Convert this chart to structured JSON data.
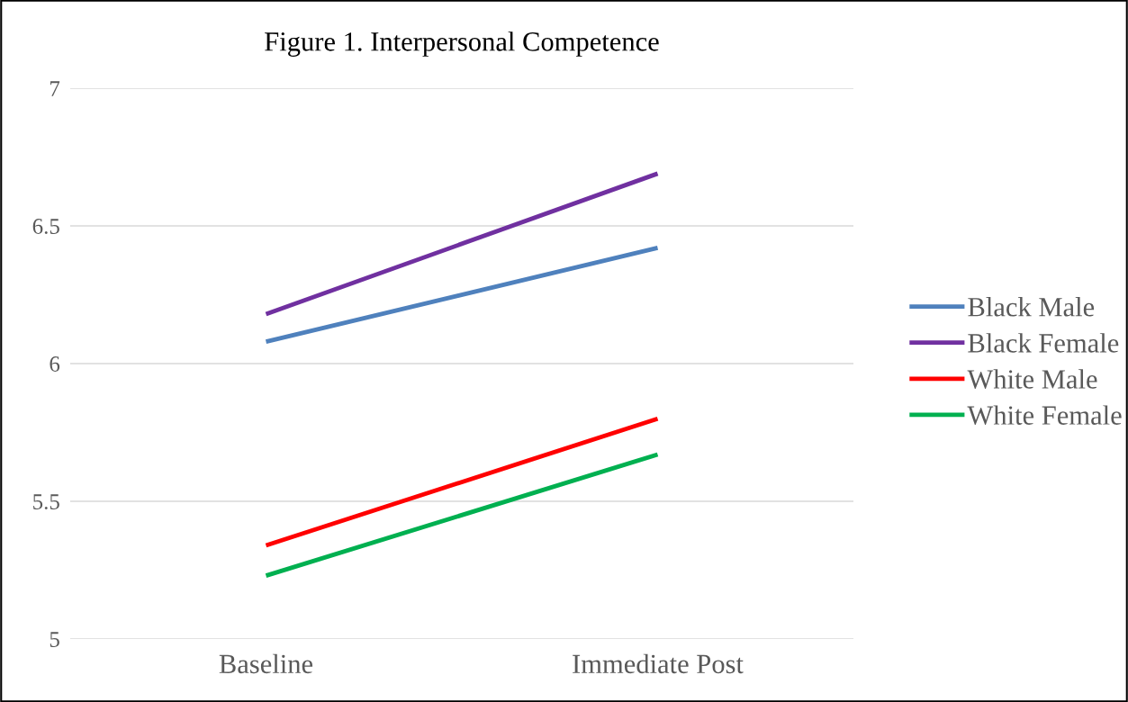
{
  "chart_data": {
    "type": "line",
    "title": "Figure 1. Interpersonal Competence",
    "categories": [
      "Baseline",
      "Immediate Post"
    ],
    "series": [
      {
        "name": "Black Male",
        "color": "#4f81bd",
        "values": [
          6.08,
          6.42
        ]
      },
      {
        "name": "Black Female",
        "color": "#7030a0",
        "values": [
          6.18,
          6.69
        ]
      },
      {
        "name": "White Male",
        "color": "#ff0000",
        "values": [
          5.34,
          5.8
        ]
      },
      {
        "name": "White Female",
        "color": "#00b050",
        "values": [
          5.23,
          5.67
        ]
      }
    ],
    "ylim": [
      5,
      7
    ],
    "yticks": [
      5,
      5.5,
      6,
      6.5,
      7
    ],
    "grid": "y",
    "legend": "right",
    "marker": "none",
    "line_style": "solid"
  }
}
